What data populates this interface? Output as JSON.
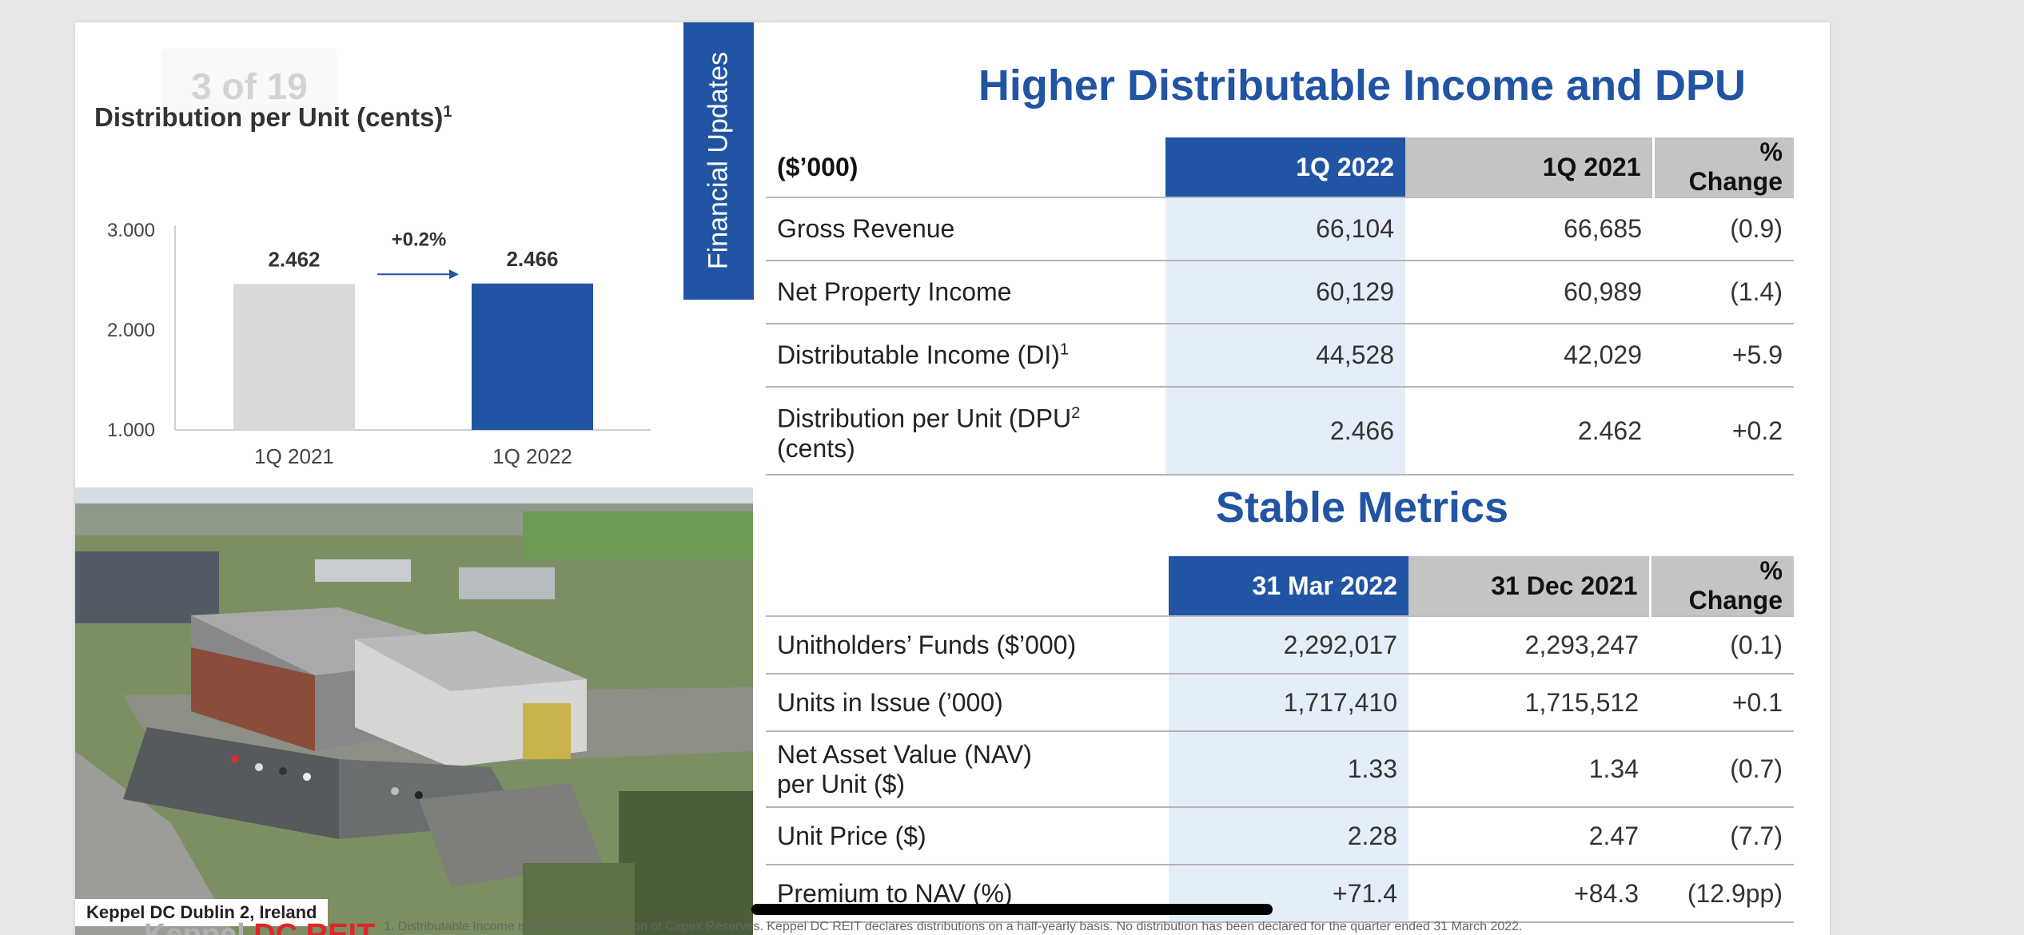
{
  "pager": "3 of 19",
  "section_tab": "Financial Updates",
  "chart_data": {
    "type": "bar",
    "title": "Distribution per Unit (cents)",
    "title_sup": "1",
    "categories": [
      "1Q 2021",
      "1Q 2022"
    ],
    "values": [
      2.462,
      2.466
    ],
    "value_labels": [
      "2.462",
      "2.466"
    ],
    "ylim": [
      1.0,
      3.0
    ],
    "yticks": [
      "1.000",
      "2.000",
      "3.000"
    ],
    "change_label": "+0.2%",
    "colors": [
      "#d9d9d9",
      "#2154a3"
    ]
  },
  "photo_caption": "Keppel DC Dublin 2, Ireland",
  "income": {
    "title": "Higher Distributable Income and DPU",
    "headers": [
      "($’000)",
      "1Q 2022",
      "1Q 2021",
      "% Change"
    ],
    "rows": [
      {
        "label": "Gross Revenue",
        "sup": "",
        "label2": "",
        "cur": "66,104",
        "prev": "66,685",
        "chg": "(0.9)"
      },
      {
        "label": "Net Property Income",
        "sup": "",
        "label2": "",
        "cur": "60,129",
        "prev": "60,989",
        "chg": "(1.4)"
      },
      {
        "label": "Distributable Income (DI)",
        "sup": "1",
        "label2": "",
        "cur": "44,528",
        "prev": "42,029",
        "chg": "+5.9"
      },
      {
        "label": "Distribution per Unit (DPU",
        "sup": "2",
        "label2": "(cents)",
        "cur": "2.466",
        "prev": "2.462",
        "chg": "+0.2"
      }
    ]
  },
  "metrics": {
    "title": "Stable Metrics",
    "headers": [
      "",
      "31 Mar 2022",
      "31 Dec 2021",
      "% Change"
    ],
    "rows": [
      {
        "label": "Unitholders’ Funds ($’000)",
        "label2": "",
        "cur": "2,292,017",
        "prev": "2,293,247",
        "chg": "(0.1)"
      },
      {
        "label": "Units in Issue (’000)",
        "label2": "",
        "cur": "1,717,410",
        "prev": "1,715,512",
        "chg": "+0.1"
      },
      {
        "label": "Net Asset Value (NAV)",
        "label2": "per Unit ($)",
        "cur": "1.33",
        "prev": "1.34",
        "chg": "(0.7)"
      },
      {
        "label": "Unit Price ($)",
        "label2": "",
        "cur": "2.28",
        "prev": "2.47",
        "chg": "(7.7)"
      },
      {
        "label": "Premium to NAV (%)",
        "label2": "",
        "cur": "+71.4",
        "prev": "+84.3",
        "chg": "(12.9pp)"
      }
    ]
  },
  "footer": {
    "logo_keppel": "Keppel",
    "logo_dc": "DC REIT",
    "note": "1. Distributable Income is before the deduction of Capex Reserves. Keppel DC REIT declares distributions on a half-yearly basis. No distribution has been declared for the quarter ended 31 March 2022."
  }
}
